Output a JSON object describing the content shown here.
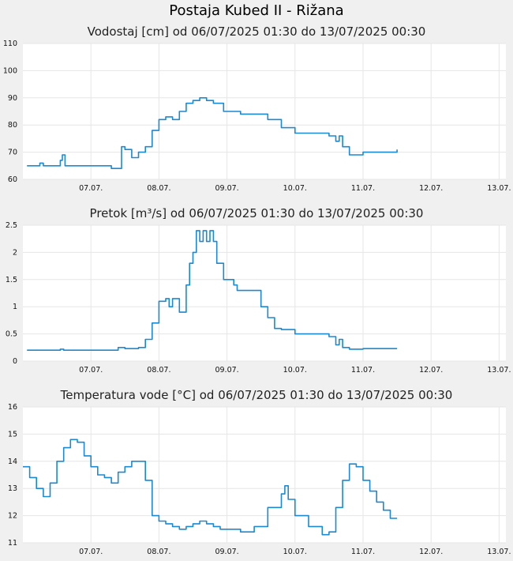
{
  "page_title": "Postaja Kubed II - Rižana",
  "colors": {
    "line": "#1a8ad4",
    "grid": "#e6e6e6",
    "plot_bg": "#ffffff",
    "page_bg": "#f0f0f0"
  },
  "chart_data": [
    {
      "type": "line",
      "title": "Vodostaj [cm] od 06/07/2025 01:30 do 13/07/2025 00:30",
      "ylim": [
        60,
        110
      ],
      "yticks": [
        "60",
        "70",
        "80",
        "90",
        "100",
        "110"
      ],
      "x_range_days": [
        6.0,
        13.1
      ],
      "xticks": [
        {
          "day": 7,
          "label": "07.07."
        },
        {
          "day": 8,
          "label": "08.07."
        },
        {
          "day": 9,
          "label": "09.07."
        },
        {
          "day": 10,
          "label": "10.07."
        },
        {
          "day": 11,
          "label": "11.07."
        },
        {
          "day": 12,
          "label": "12.07."
        },
        {
          "day": 13,
          "label": "13.07."
        }
      ],
      "x": [
        6.06,
        6.2,
        6.25,
        6.3,
        6.5,
        6.55,
        6.58,
        6.62,
        6.9,
        7.3,
        7.45,
        7.5,
        7.6,
        7.7,
        7.8,
        7.9,
        8.0,
        8.1,
        8.2,
        8.3,
        8.4,
        8.5,
        8.6,
        8.7,
        8.8,
        8.95,
        9.2,
        9.4,
        9.6,
        9.8,
        10.0,
        10.3,
        10.5,
        10.6,
        10.65,
        10.7,
        10.8,
        11.0,
        11.2,
        11.5
      ],
      "values": [
        65,
        65,
        66,
        65,
        65,
        67,
        69,
        65,
        65,
        64,
        72,
        71,
        68,
        70,
        72,
        78,
        82,
        83,
        82,
        85,
        88,
        89,
        90,
        89,
        88,
        85,
        84,
        84,
        82,
        79,
        77,
        77,
        76,
        74,
        76,
        72,
        69,
        70,
        70,
        71
      ]
    },
    {
      "type": "line",
      "title": "Pretok [m³/s] od 06/07/2025 01:30 do 13/07/2025 00:30",
      "ylim": [
        0,
        2.5
      ],
      "yticks": [
        "0",
        "0.5",
        "1",
        "1.5",
        "2",
        "2.5"
      ],
      "x_range_days": [
        6.0,
        13.1
      ],
      "xticks": [
        {
          "day": 7,
          "label": "07.07."
        },
        {
          "day": 8,
          "label": "08.07."
        },
        {
          "day": 9,
          "label": "09.07."
        },
        {
          "day": 10,
          "label": "10.07."
        },
        {
          "day": 11,
          "label": "11.07."
        },
        {
          "day": 12,
          "label": "12.07."
        },
        {
          "day": 13,
          "label": "13.07."
        }
      ],
      "x": [
        6.06,
        6.5,
        6.55,
        6.6,
        7.3,
        7.4,
        7.5,
        7.7,
        7.8,
        7.9,
        8.0,
        8.1,
        8.15,
        8.2,
        8.3,
        8.4,
        8.45,
        8.5,
        8.55,
        8.6,
        8.65,
        8.7,
        8.75,
        8.8,
        8.85,
        8.95,
        9.1,
        9.15,
        9.2,
        9.4,
        9.5,
        9.6,
        9.7,
        9.8,
        10.0,
        10.3,
        10.5,
        10.6,
        10.65,
        10.7,
        10.8,
        11.0,
        11.5
      ],
      "values": [
        0.2,
        0.2,
        0.22,
        0.2,
        0.2,
        0.25,
        0.23,
        0.25,
        0.4,
        0.7,
        1.1,
        1.15,
        1.0,
        1.15,
        0.9,
        1.4,
        1.8,
        2.0,
        2.4,
        2.2,
        2.4,
        2.2,
        2.4,
        2.2,
        1.8,
        1.5,
        1.4,
        1.3,
        1.3,
        1.3,
        1.0,
        0.8,
        0.6,
        0.58,
        0.5,
        0.5,
        0.45,
        0.3,
        0.4,
        0.25,
        0.22,
        0.23,
        0.23
      ]
    },
    {
      "type": "line",
      "title": "Temperatura vode [°C] od 06/07/2025 01:30 do 13/07/2025 00:30",
      "ylim": [
        11,
        16
      ],
      "yticks": [
        "11",
        "12",
        "13",
        "14",
        "15",
        "16"
      ],
      "x_range_days": [
        6.0,
        13.1
      ],
      "xticks": [
        {
          "day": 7,
          "label": "07.07."
        },
        {
          "day": 8,
          "label": "08.07."
        },
        {
          "day": 9,
          "label": "09.07."
        },
        {
          "day": 10,
          "label": "10.07."
        },
        {
          "day": 11,
          "label": "11.07."
        },
        {
          "day": 12,
          "label": "12.07."
        },
        {
          "day": 13,
          "label": "13.07."
        }
      ],
      "x": [
        6.0,
        6.1,
        6.2,
        6.3,
        6.4,
        6.5,
        6.6,
        6.7,
        6.8,
        6.9,
        7.0,
        7.1,
        7.2,
        7.3,
        7.4,
        7.5,
        7.6,
        7.7,
        7.8,
        7.9,
        8.0,
        8.1,
        8.2,
        8.3,
        8.4,
        8.5,
        8.6,
        8.7,
        8.8,
        8.9,
        9.0,
        9.2,
        9.4,
        9.6,
        9.8,
        9.85,
        9.9,
        10.0,
        10.2,
        10.4,
        10.5,
        10.6,
        10.7,
        10.8,
        10.9,
        11.0,
        11.1,
        11.2,
        11.3,
        11.4,
        11.5
      ],
      "values": [
        13.8,
        13.4,
        13.0,
        12.7,
        13.2,
        14.0,
        14.5,
        14.8,
        14.7,
        14.2,
        13.8,
        13.5,
        13.4,
        13.2,
        13.6,
        13.8,
        14.0,
        14.0,
        13.3,
        12.0,
        11.8,
        11.7,
        11.6,
        11.5,
        11.6,
        11.7,
        11.8,
        11.7,
        11.6,
        11.5,
        11.5,
        11.4,
        11.6,
        12.3,
        12.8,
        13.1,
        12.6,
        12.0,
        11.6,
        11.3,
        11.4,
        12.3,
        13.3,
        13.9,
        13.8,
        13.3,
        12.9,
        12.5,
        12.2,
        11.9,
        11.9
      ]
    }
  ]
}
